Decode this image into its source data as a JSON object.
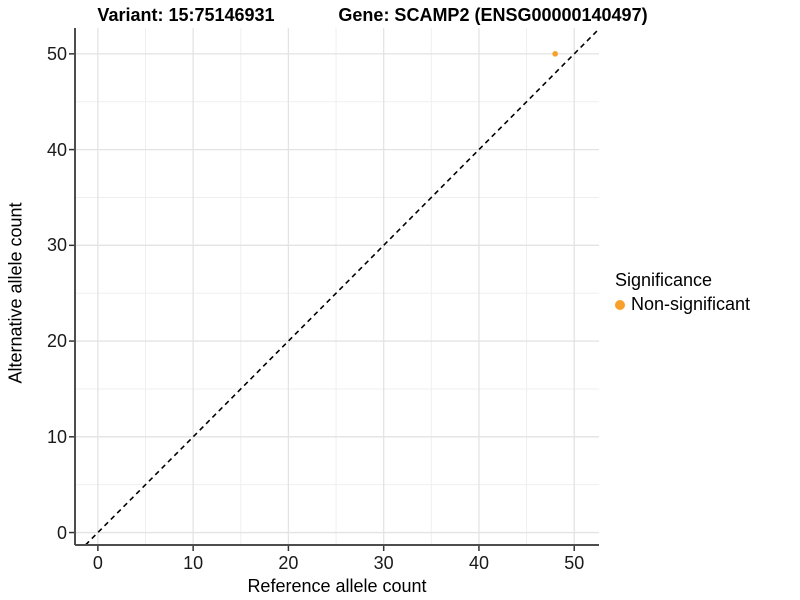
{
  "chart_data": {
    "type": "scatter",
    "title_left": "Variant: 15:75146931",
    "title_right": "Gene: SCAMP2 (ENSG00000140497)",
    "xlabel": "Reference allele count",
    "ylabel": "Alternative allele count",
    "xticks": [
      0,
      10,
      20,
      30,
      40,
      50
    ],
    "yticks": [
      0,
      10,
      20,
      30,
      40,
      50
    ],
    "xlim": [
      -2.4,
      52.6
    ],
    "ylim": [
      -1.3,
      52.7
    ],
    "minor_grid_step": 5,
    "grid": true,
    "points": [
      {
        "x": 48,
        "y": 50,
        "series": "Non-significant",
        "color": "#F8A029"
      }
    ],
    "reference_line": {
      "type": "identity",
      "style": "dashed",
      "color": "#000000"
    },
    "legend": {
      "title": "Significance",
      "position": "right",
      "items": [
        {
          "label": "Non-significant",
          "color": "#F8A029"
        }
      ]
    }
  },
  "colors": {
    "point_non_significant": "#F8A029",
    "axis_line": "#4d4d4d",
    "tick_mark": "#333333",
    "grid_major": "#e3e3e3",
    "grid_minor": "#efefef",
    "background": "#ffffff"
  }
}
